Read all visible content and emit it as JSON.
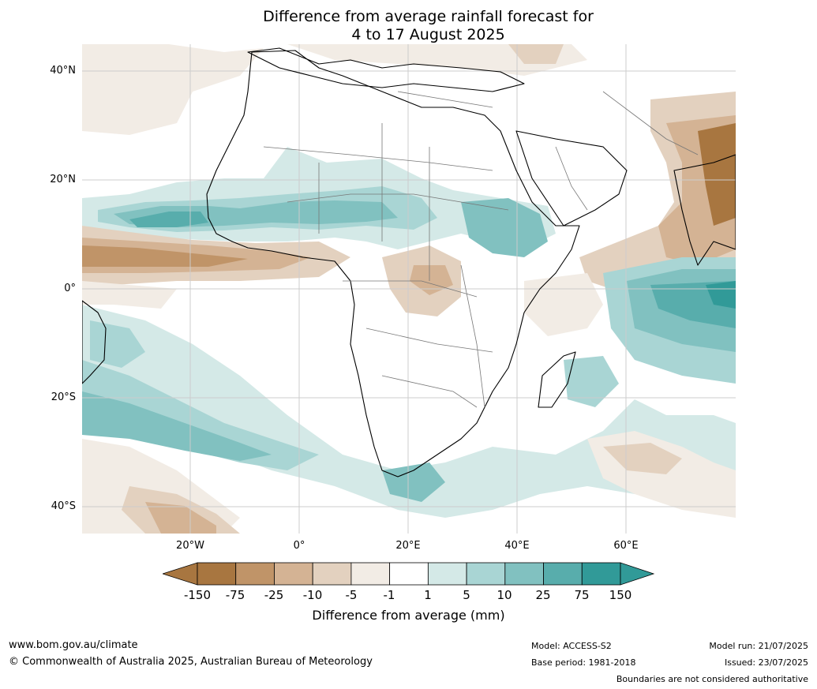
{
  "title": {
    "line1": "Difference from average rainfall forecast for",
    "line2": "4 to 17 August 2025"
  },
  "map": {
    "lat_labels": [
      "40°N",
      "20°N",
      "0°",
      "20°S",
      "40°S"
    ],
    "lon_labels": [
      "20°W",
      "0°",
      "20°E",
      "40°E",
      "60°E"
    ],
    "gridlines": true,
    "icon": "africa-rainfall-anomaly-map"
  },
  "colorbar": {
    "title": "Difference from average (mm)",
    "tick_labels": [
      "-150",
      "-75",
      "-25",
      "-10",
      "-5",
      "-1",
      "1",
      "5",
      "10",
      "25",
      "75",
      "150"
    ],
    "colors": [
      "#a87640",
      "#c09468",
      "#d4b394",
      "#e3d1bf",
      "#f2ece5",
      "#ffffff",
      "#d4e9e7",
      "#a9d5d4",
      "#81c1c0",
      "#58adac",
      "#319a98"
    ],
    "extend_low_color": "#a87640",
    "extend_high_color": "#319a98"
  },
  "footer": {
    "website": "www.bom.gov.au/climate",
    "copyright": "© Commonwealth of Australia 2025, Australian Bureau of Meteorology",
    "model": "Model: ACCESS-S2",
    "base_period": "Base period: 1981-2018",
    "model_run": "Model run: 21/07/2025",
    "issued": "Issued: 23/07/2025",
    "disclaimer": "Boundaries are not considered authoritative"
  }
}
